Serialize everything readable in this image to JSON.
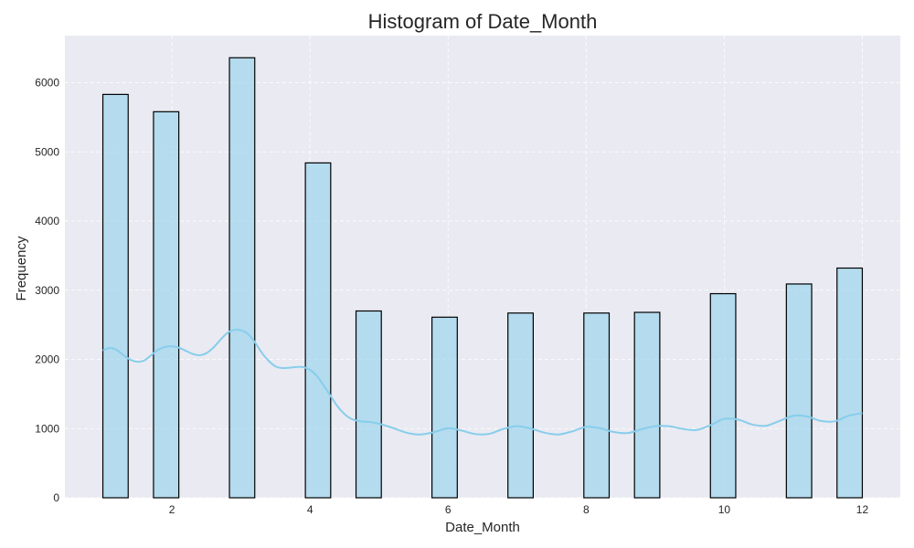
{
  "chart_data": {
    "type": "bar",
    "title": "Histogram of Date_Month",
    "xlabel": "Date_Month",
    "ylabel": "Frequency",
    "xlim": [
      0.45,
      12.55
    ],
    "ylim": [
      0,
      6680
    ],
    "x_ticks": [
      2,
      4,
      6,
      8,
      10,
      12
    ],
    "y_ticks": [
      0,
      1000,
      2000,
      3000,
      4000,
      5000,
      6000
    ],
    "grid": true,
    "bin_width": 0.36667,
    "bars": [
      {
        "x0": 1.0,
        "value": 5830
      },
      {
        "x0": 1.7333,
        "value": 5580
      },
      {
        "x0": 2.8333,
        "value": 6360
      },
      {
        "x0": 3.9333,
        "value": 4840
      },
      {
        "x0": 4.6667,
        "value": 2700
      },
      {
        "x0": 5.7667,
        "value": 2610
      },
      {
        "x0": 6.8667,
        "value": 2670
      },
      {
        "x0": 7.9667,
        "value": 2670
      },
      {
        "x0": 8.7,
        "value": 2680
      },
      {
        "x0": 9.8,
        "value": 2950
      },
      {
        "x0": 10.9,
        "value": 3090
      },
      {
        "x0": 11.6333,
        "value": 3320
      }
    ],
    "kde": {
      "name": "KDE",
      "points": [
        [
          1.0,
          2130
        ],
        [
          1.1,
          2165
        ],
        [
          1.2,
          2135
        ],
        [
          1.3,
          2060
        ],
        [
          1.4,
          1995
        ],
        [
          1.5,
          1965
        ],
        [
          1.6,
          1985
        ],
        [
          1.7,
          2060
        ],
        [
          1.8,
          2140
        ],
        [
          1.9,
          2180
        ],
        [
          2.0,
          2190
        ],
        [
          2.1,
          2170
        ],
        [
          2.2,
          2125
        ],
        [
          2.3,
          2080
        ],
        [
          2.4,
          2060
        ],
        [
          2.5,
          2090
        ],
        [
          2.6,
          2170
        ],
        [
          2.7,
          2280
        ],
        [
          2.8,
          2380
        ],
        [
          2.9,
          2425
        ],
        [
          3.0,
          2420
        ],
        [
          3.1,
          2370
        ],
        [
          3.2,
          2250
        ],
        [
          3.3,
          2100
        ],
        [
          3.4,
          1980
        ],
        [
          3.5,
          1900
        ],
        [
          3.6,
          1875
        ],
        [
          3.7,
          1880
        ],
        [
          3.8,
          1890
        ],
        [
          3.9,
          1890
        ],
        [
          4.0,
          1850
        ],
        [
          4.1,
          1760
        ],
        [
          4.2,
          1620
        ],
        [
          4.3,
          1470
        ],
        [
          4.4,
          1320
        ],
        [
          4.5,
          1210
        ],
        [
          4.6,
          1140
        ],
        [
          4.7,
          1110
        ],
        [
          4.8,
          1100
        ],
        [
          4.9,
          1090
        ],
        [
          5.0,
          1070
        ],
        [
          5.2,
          1010
        ],
        [
          5.4,
          940
        ],
        [
          5.6,
          915
        ],
        [
          5.8,
          950
        ],
        [
          6.0,
          1005
        ],
        [
          6.2,
          970
        ],
        [
          6.4,
          920
        ],
        [
          6.6,
          925
        ],
        [
          6.8,
          995
        ],
        [
          7.0,
          1035
        ],
        [
          7.2,
          1000
        ],
        [
          7.4,
          940
        ],
        [
          7.6,
          915
        ],
        [
          7.8,
          960
        ],
        [
          8.0,
          1025
        ],
        [
          8.2,
          1005
        ],
        [
          8.4,
          950
        ],
        [
          8.6,
          935
        ],
        [
          8.8,
          990
        ],
        [
          9.0,
          1035
        ],
        [
          9.2,
          1035
        ],
        [
          9.4,
          995
        ],
        [
          9.6,
          980
        ],
        [
          9.8,
          1050
        ],
        [
          10.0,
          1140
        ],
        [
          10.2,
          1130
        ],
        [
          10.4,
          1060
        ],
        [
          10.6,
          1040
        ],
        [
          10.8,
          1110
        ],
        [
          11.0,
          1185
        ],
        [
          11.2,
          1175
        ],
        [
          11.4,
          1110
        ],
        [
          11.6,
          1105
        ],
        [
          11.8,
          1185
        ],
        [
          12.0,
          1225
        ]
      ],
      "color": "#87CEEB"
    },
    "colors": {
      "bar_fill": "#87CEEB",
      "bar_stroke": "#000000",
      "background": "#EAEAF2",
      "grid": "#FFFFFF"
    }
  }
}
